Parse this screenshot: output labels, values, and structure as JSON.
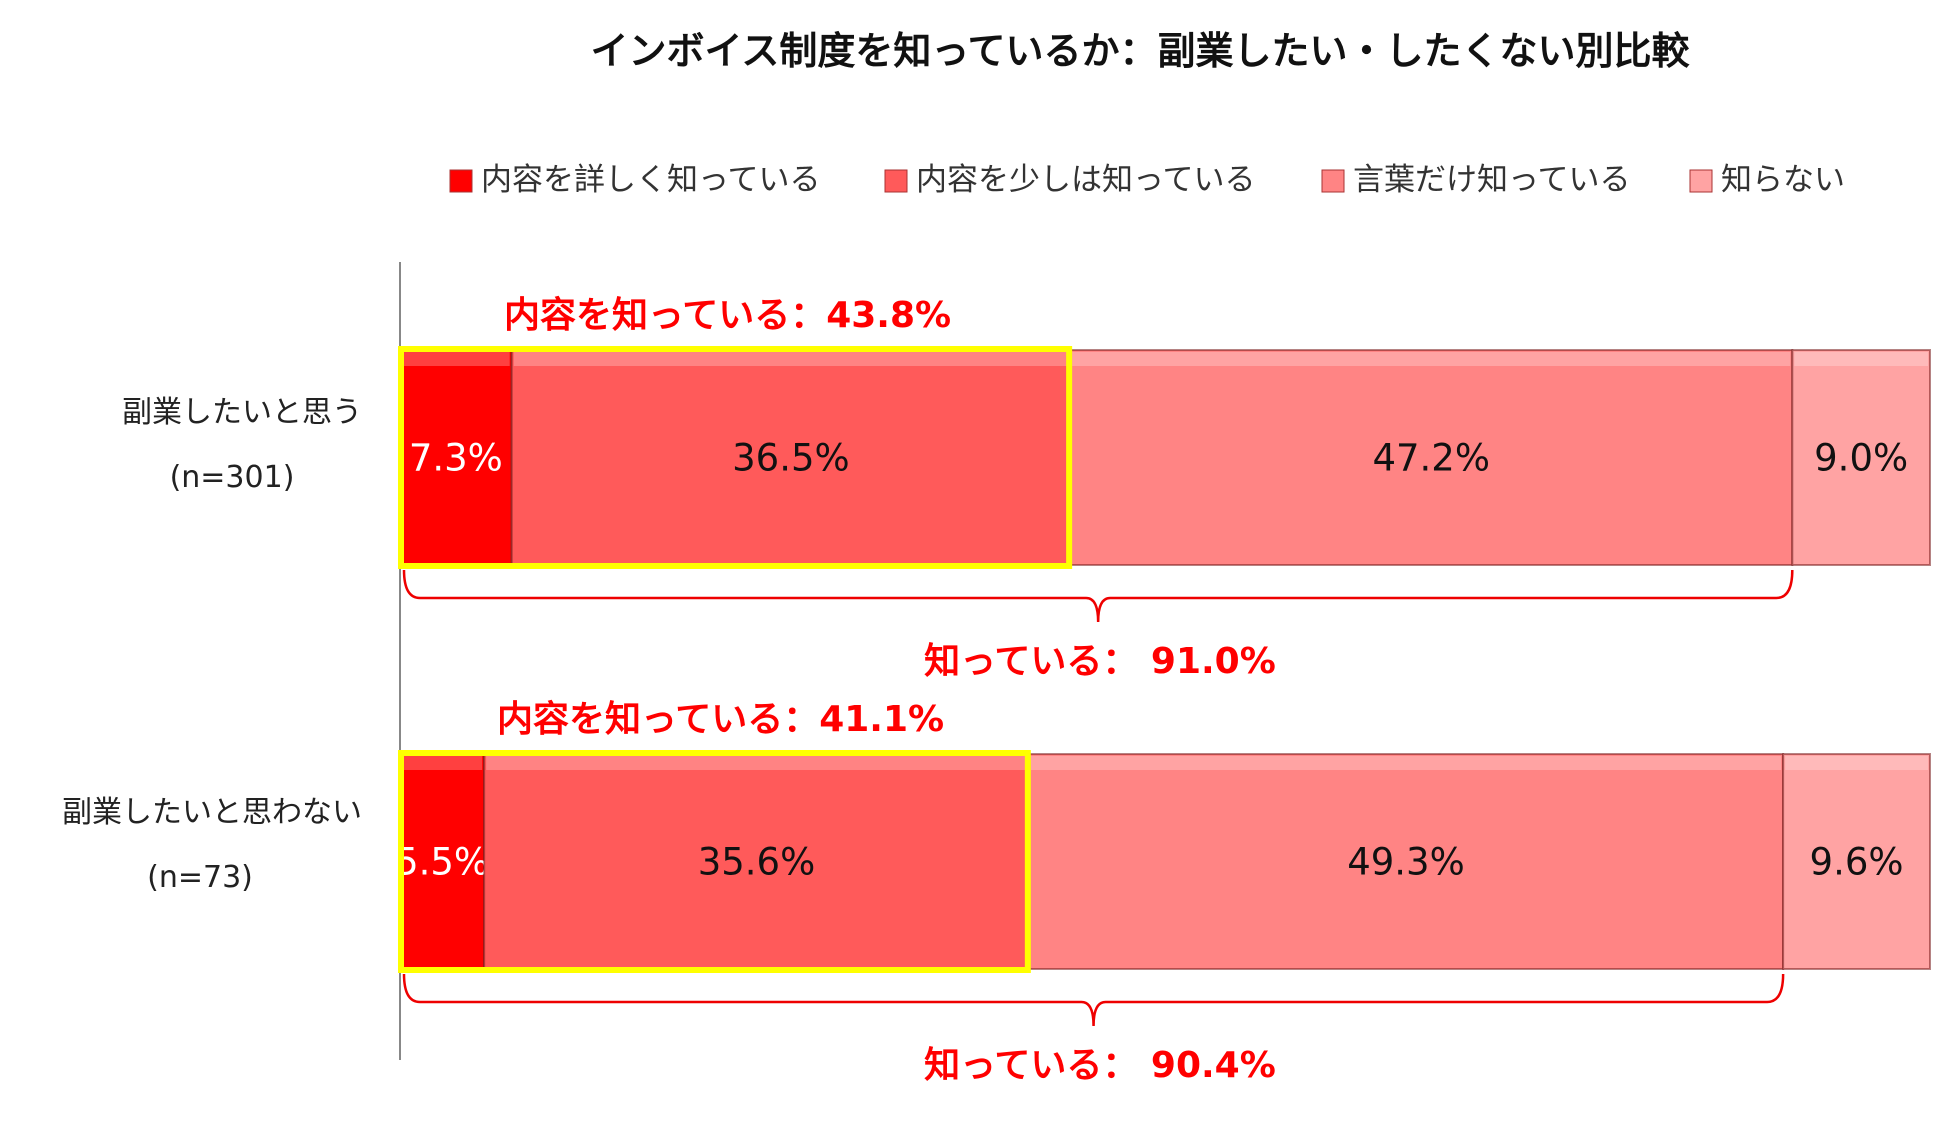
{
  "chart_data": {
    "type": "bar",
    "orientation": "horizontal-stacked-100",
    "title": "インボイス制度を知っているか：副業したい・したくない別比較",
    "legend_position": "top",
    "categories": [
      {
        "label": "副業したいと思う",
        "n": "(n=301)"
      },
      {
        "label": "副業したいと思わない",
        "n": "(n=73)"
      }
    ],
    "series": [
      {
        "name": "内容を詳しく知っている",
        "color": "#ff0000",
        "text_color": "#ffffff",
        "values": [
          7.3,
          5.5
        ]
      },
      {
        "name": "内容を少しは知っている",
        "color": "#ff5a5a",
        "text_color": "#111111",
        "values": [
          36.5,
          35.6
        ]
      },
      {
        "name": "言葉だけ知っている",
        "color": "#ff8484",
        "text_color": "#111111",
        "values": [
          47.2,
          49.3
        ]
      },
      {
        "name": "知らない",
        "color": "#ffa3a3",
        "text_color": "#111111",
        "values": [
          9.0,
          9.6
        ]
      }
    ],
    "value_labels": [
      [
        "7.3%",
        "36.5%",
        "47.2%",
        "9.0%"
      ],
      [
        "5.5%",
        "35.6%",
        "49.3%",
        "9.6%"
      ]
    ],
    "annotations": [
      {
        "content_known": "内容を知っている：43.8%",
        "known": "知っている： 91.0%"
      },
      {
        "content_known": "内容を知っている：41.1%",
        "known": "知っている： 90.4%"
      }
    ],
    "highlight_color": "#ffff00",
    "xlim": [
      0,
      100
    ]
  }
}
